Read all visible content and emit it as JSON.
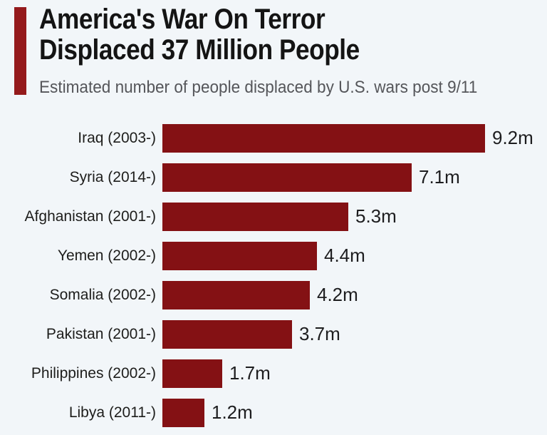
{
  "page": {
    "background_color": "#f2f6f9"
  },
  "header": {
    "accent_color": "#941a1c",
    "title_line1": "America's War On Terror",
    "title_line2": "Displaced 37 Million People",
    "subtitle": "Estimated number of people displaced by U.S. wars post 9/11"
  },
  "chart_data": {
    "type": "bar",
    "orientation": "horizontal",
    "title": "America's War On Terror Displaced 37 Million People",
    "subtitle": "Estimated number of people displaced by U.S. wars post 9/11",
    "categories": [
      "Iraq (2003-)",
      "Syria (2014-)",
      "Afghanistan (2001-)",
      "Yemen (2002-)",
      "Somalia (2002-)",
      "Pakistan (2001-)",
      "Philippines (2002-)",
      "Libya (2011-)"
    ],
    "values": [
      9.2,
      7.1,
      5.3,
      4.4,
      4.2,
      3.7,
      1.7,
      1.2
    ],
    "value_labels": [
      "9.2m",
      "7.1m",
      "5.3m",
      "4.4m",
      "4.2m",
      "3.7m",
      "1.7m",
      "1.2m"
    ],
    "unit": "million people",
    "xlim": [
      0,
      9.2
    ],
    "bar_color": "#841114",
    "grid": false,
    "legend": false
  }
}
